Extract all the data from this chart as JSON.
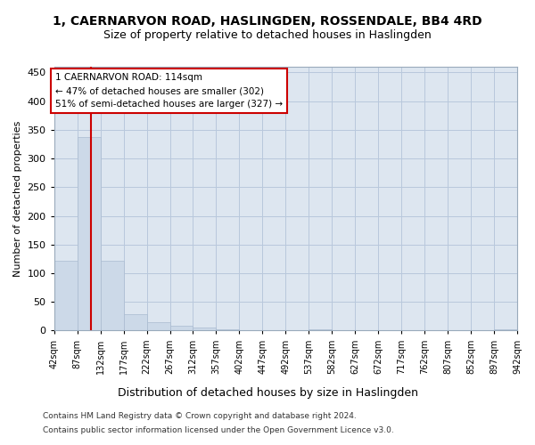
{
  "title": "1, CAERNARVON ROAD, HASLINGDEN, ROSSENDALE, BB4 4RD",
  "subtitle": "Size of property relative to detached houses in Haslingden",
  "xlabel": "Distribution of detached houses by size in Haslingden",
  "ylabel": "Number of detached properties",
  "bar_color": "#ccd9e8",
  "bar_edge_color": "#aabbd0",
  "property_line_color": "#cc0000",
  "property_line_x": 114,
  "annotation_text": "1 CAERNARVON ROAD: 114sqm\n← 47% of detached houses are smaller (302)\n51% of semi-detached houses are larger (327) →",
  "annotation_box_color": "#ffffff",
  "annotation_box_edge_color": "#cc0000",
  "bin_edges": [
    42,
    87,
    132,
    177,
    222,
    267,
    312,
    357,
    402,
    447,
    492,
    537,
    582,
    627,
    672,
    717,
    762,
    807,
    852,
    897,
    942
  ],
  "bar_heights": [
    122,
    338,
    122,
    29,
    15,
    8,
    5,
    3,
    0,
    0,
    0,
    3,
    0,
    0,
    0,
    0,
    0,
    0,
    0,
    3
  ],
  "ylim": [
    0,
    460
  ],
  "yticks": [
    0,
    50,
    100,
    150,
    200,
    250,
    300,
    350,
    400,
    450
  ],
  "background_color": "#ffffff",
  "plot_bg_color": "#dde6f0",
  "grid_color": "#b8c8dc",
  "footer_line1": "Contains HM Land Registry data © Crown copyright and database right 2024.",
  "footer_line2": "Contains public sector information licensed under the Open Government Licence v3.0.",
  "title_fontsize": 10,
  "subtitle_fontsize": 9,
  "ylabel_fontsize": 8,
  "xlabel_fontsize": 9,
  "ytick_fontsize": 8,
  "xtick_fontsize": 7
}
